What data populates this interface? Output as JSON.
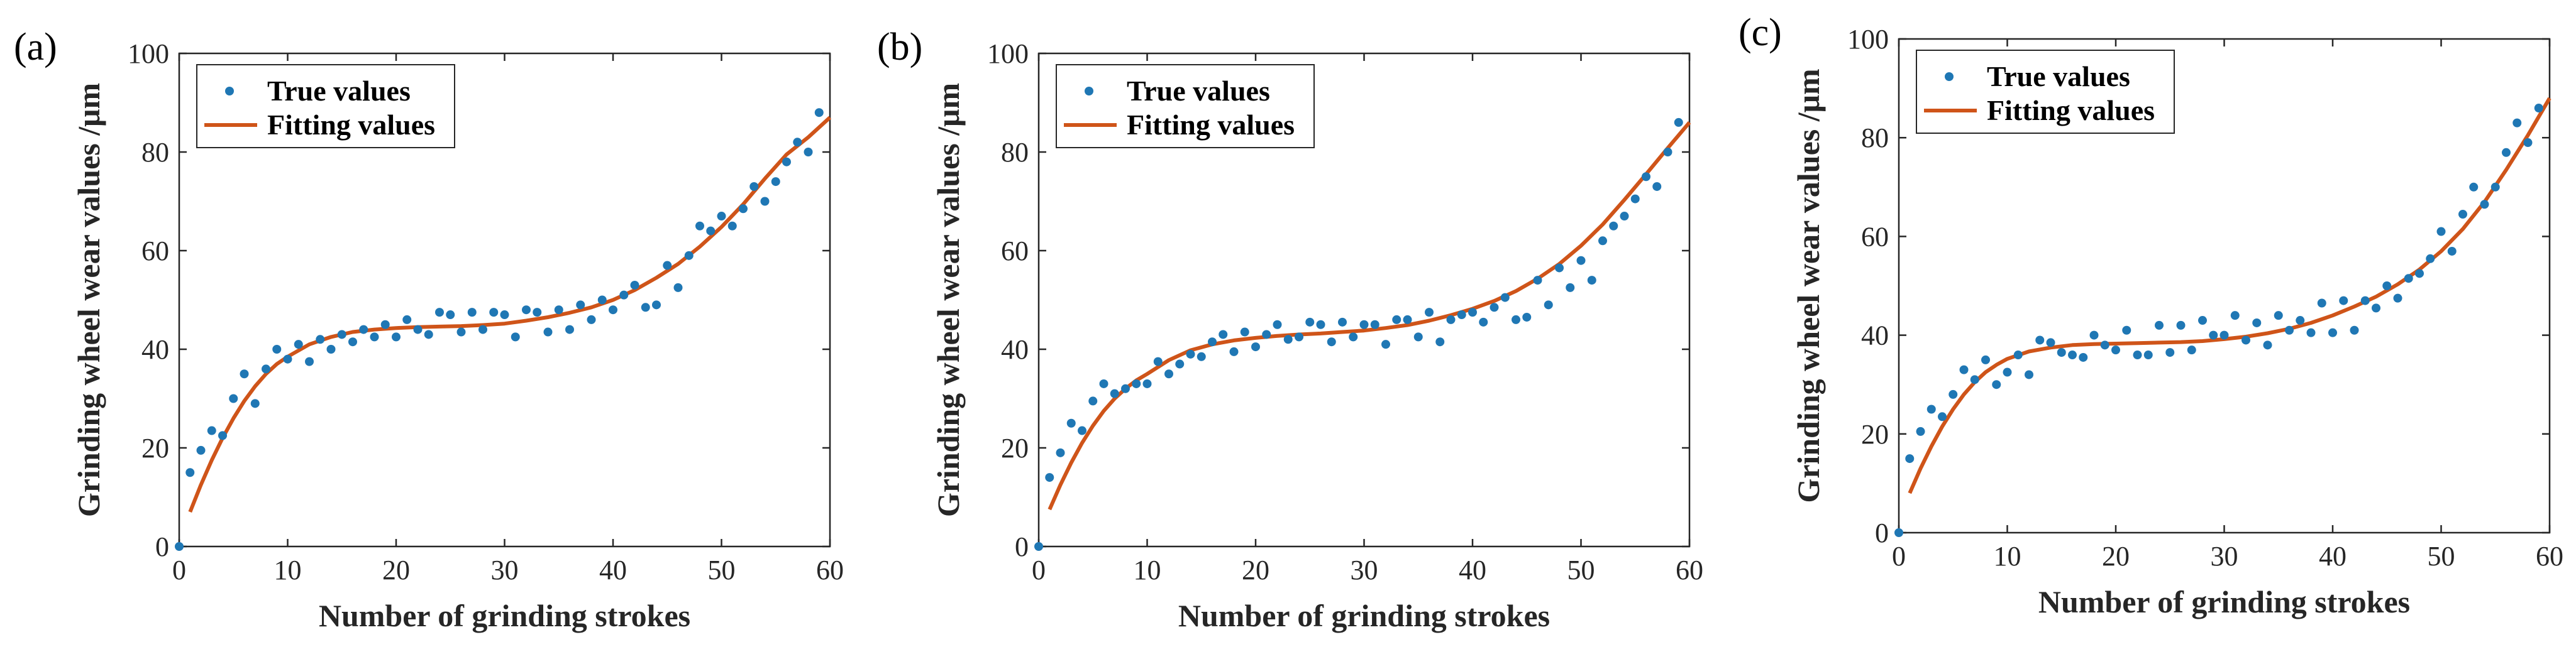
{
  "figure": {
    "colors": {
      "points": "#1f77b4",
      "line": "#cf5419",
      "axis": "#262626",
      "background": "#ffffff"
    },
    "marker_icon": "dot-icon",
    "line_icon": "line-sample-icon"
  },
  "chart_data": [
    {
      "type": "scatter",
      "panel_label": "(a)",
      "title": "",
      "xlabel": "Number of grinding strokes",
      "ylabel": "Grinding wheel wear values /μm",
      "xlim": [
        0,
        60
      ],
      "ylim": [
        0,
        100
      ],
      "xticks": [
        0,
        10,
        20,
        30,
        40,
        50,
        60
      ],
      "yticks": [
        0,
        20,
        40,
        60,
        80,
        100
      ],
      "grid": false,
      "legend_position": "top-left",
      "series": [
        {
          "name": "True values",
          "kind": "scatter",
          "x": [
            0,
            1,
            2,
            3,
            4,
            5,
            6,
            7,
            8,
            9,
            10,
            11,
            12,
            13,
            14,
            15,
            16,
            17,
            18,
            19,
            20,
            21,
            22,
            23,
            24,
            25,
            26,
            27,
            28,
            29,
            30,
            31,
            32,
            33,
            34,
            35,
            36,
            37,
            38,
            39,
            40,
            41,
            42,
            43,
            44,
            45,
            46,
            47,
            48,
            49,
            50,
            51,
            52,
            53,
            54,
            55,
            56,
            57,
            58,
            59
          ],
          "y": [
            0,
            15,
            19.5,
            23.5,
            22.5,
            30,
            35,
            29,
            36,
            40,
            38,
            41,
            37.5,
            42,
            40,
            43,
            41.5,
            44,
            42.5,
            45,
            42.5,
            46,
            44,
            43,
            47.5,
            47,
            43.5,
            47.5,
            44,
            47.5,
            47,
            42.5,
            48,
            47.5,
            43.5,
            48,
            44,
            49,
            46,
            50,
            48,
            51,
            53,
            48.5,
            49,
            57,
            52.5,
            59,
            65,
            64,
            67,
            65,
            68.5,
            73,
            70,
            74,
            78,
            82,
            80,
            88
          ]
        },
        {
          "name": "Fitting values",
          "kind": "line",
          "x": [
            1,
            2,
            3,
            4,
            5,
            6,
            7,
            8,
            9,
            10,
            12,
            14,
            16,
            18,
            20,
            22,
            24,
            26,
            28,
            30,
            32,
            34,
            36,
            38,
            40,
            42,
            44,
            46,
            48,
            50,
            52,
            54,
            56,
            58,
            60
          ],
          "y": [
            7,
            12.5,
            17.5,
            22,
            26,
            29.5,
            32.5,
            35,
            37,
            38.5,
            41,
            42.5,
            43.5,
            44,
            44.3,
            44.5,
            44.6,
            44.7,
            44.9,
            45.2,
            45.8,
            46.5,
            47.4,
            48.5,
            50,
            52,
            54.5,
            57.3,
            60.8,
            64.8,
            69.4,
            74.6,
            79.5,
            83,
            87
          ]
        }
      ]
    },
    {
      "type": "scatter",
      "panel_label": "(b)",
      "title": "",
      "xlabel": "Number of grinding strokes",
      "ylabel": "Grinding wheel wear values /μm",
      "xlim": [
        0,
        60
      ],
      "ylim": [
        0,
        100
      ],
      "xticks": [
        0,
        10,
        20,
        30,
        40,
        50,
        60
      ],
      "yticks": [
        0,
        20,
        40,
        60,
        80,
        100
      ],
      "grid": false,
      "legend_position": "top-left",
      "series": [
        {
          "name": "True values",
          "kind": "scatter",
          "x": [
            0,
            1,
            2,
            3,
            4,
            5,
            6,
            7,
            8,
            9,
            10,
            11,
            12,
            13,
            14,
            15,
            16,
            17,
            18,
            19,
            20,
            21,
            22,
            23,
            24,
            25,
            26,
            27,
            28,
            29,
            30,
            31,
            32,
            33,
            34,
            35,
            36,
            37,
            38,
            39,
            40,
            41,
            42,
            43,
            44,
            45,
            46,
            47,
            48,
            49,
            50,
            51,
            52,
            53,
            54,
            55,
            56,
            57,
            58,
            59
          ],
          "y": [
            0,
            14,
            19,
            25,
            23.5,
            29.5,
            33,
            31,
            32,
            33,
            33,
            37.5,
            35,
            37,
            39,
            38.5,
            41.5,
            43,
            39.5,
            43.5,
            40.5,
            43,
            45,
            42,
            42.5,
            45.5,
            45,
            41.5,
            45.5,
            42.5,
            45,
            45,
            41,
            46,
            46,
            42.5,
            47.5,
            41.5,
            46,
            47,
            47.5,
            45.5,
            48.5,
            50.5,
            46,
            46.5,
            54,
            49,
            56.5,
            52.5,
            58,
            54,
            62,
            65,
            67,
            70.5,
            75,
            73,
            80,
            86
          ]
        },
        {
          "name": "Fitting values",
          "kind": "line",
          "x": [
            1,
            2,
            3,
            4,
            5,
            6,
            7,
            8,
            9,
            10,
            12,
            14,
            16,
            18,
            20,
            22,
            24,
            26,
            28,
            30,
            32,
            34,
            36,
            38,
            40,
            42,
            44,
            46,
            48,
            50,
            52,
            54,
            56,
            58,
            60
          ],
          "y": [
            7.5,
            12.5,
            17,
            21,
            24.5,
            27.5,
            30,
            32,
            33.7,
            35,
            37.8,
            39.8,
            41,
            41.8,
            42.3,
            42.7,
            43,
            43.2,
            43.5,
            43.8,
            44.3,
            44.9,
            45.8,
            46.9,
            48.2,
            49.8,
            51.8,
            54.3,
            57.3,
            61,
            65.3,
            70.3,
            75.5,
            80.8,
            86
          ]
        }
      ]
    },
    {
      "type": "scatter",
      "panel_label": "(c)",
      "title": "",
      "xlabel": "Number of grinding strokes",
      "ylabel": "Grinding wheel wear values /μm",
      "xlim": [
        0,
        60
      ],
      "ylim": [
        0,
        100
      ],
      "xticks": [
        0,
        10,
        20,
        30,
        40,
        50,
        60
      ],
      "yticks": [
        0,
        20,
        40,
        60,
        80,
        100
      ],
      "grid": false,
      "legend_position": "top-left",
      "series": [
        {
          "name": "True values",
          "kind": "scatter",
          "x": [
            0,
            1,
            2,
            3,
            4,
            5,
            6,
            7,
            8,
            9,
            10,
            11,
            12,
            13,
            14,
            15,
            16,
            17,
            18,
            19,
            20,
            21,
            22,
            23,
            24,
            25,
            26,
            27,
            28,
            29,
            30,
            31,
            32,
            33,
            34,
            35,
            36,
            37,
            38,
            39,
            40,
            41,
            42,
            43,
            44,
            45,
            46,
            47,
            48,
            49,
            50,
            51,
            52,
            53,
            54,
            55,
            56,
            57,
            58,
            59
          ],
          "y": [
            0,
            15,
            20.5,
            25,
            23.5,
            28,
            33,
            31,
            35,
            30,
            32.5,
            36,
            32,
            39,
            38.5,
            36.5,
            36,
            35.5,
            40,
            38,
            37,
            41,
            36,
            36,
            42,
            36.5,
            42,
            37,
            43,
            40,
            40,
            44,
            39,
            42.5,
            38,
            44,
            41,
            43,
            40.5,
            46.5,
            40.5,
            47,
            41,
            47,
            45.5,
            50,
            47.5,
            51.5,
            52.5,
            55.5,
            61,
            57,
            64.5,
            70,
            66.5,
            70,
            77,
            83,
            79,
            86
          ]
        },
        {
          "name": "Fitting values",
          "kind": "line",
          "x": [
            1,
            2,
            3,
            4,
            5,
            6,
            7,
            8,
            9,
            10,
            12,
            14,
            16,
            18,
            20,
            22,
            24,
            26,
            28,
            30,
            32,
            34,
            36,
            38,
            40,
            42,
            44,
            46,
            48,
            50,
            52,
            54,
            56,
            58,
            60
          ],
          "y": [
            8,
            13,
            17.5,
            21.5,
            25,
            28,
            30.5,
            32.5,
            34,
            35.2,
            36.7,
            37.5,
            38,
            38.2,
            38.3,
            38.4,
            38.5,
            38.6,
            38.8,
            39.2,
            39.7,
            40.4,
            41.3,
            42.5,
            44,
            45.8,
            47.8,
            50.3,
            53.3,
            57,
            61.5,
            67,
            73.5,
            80.5,
            88
          ]
        }
      ]
    }
  ]
}
